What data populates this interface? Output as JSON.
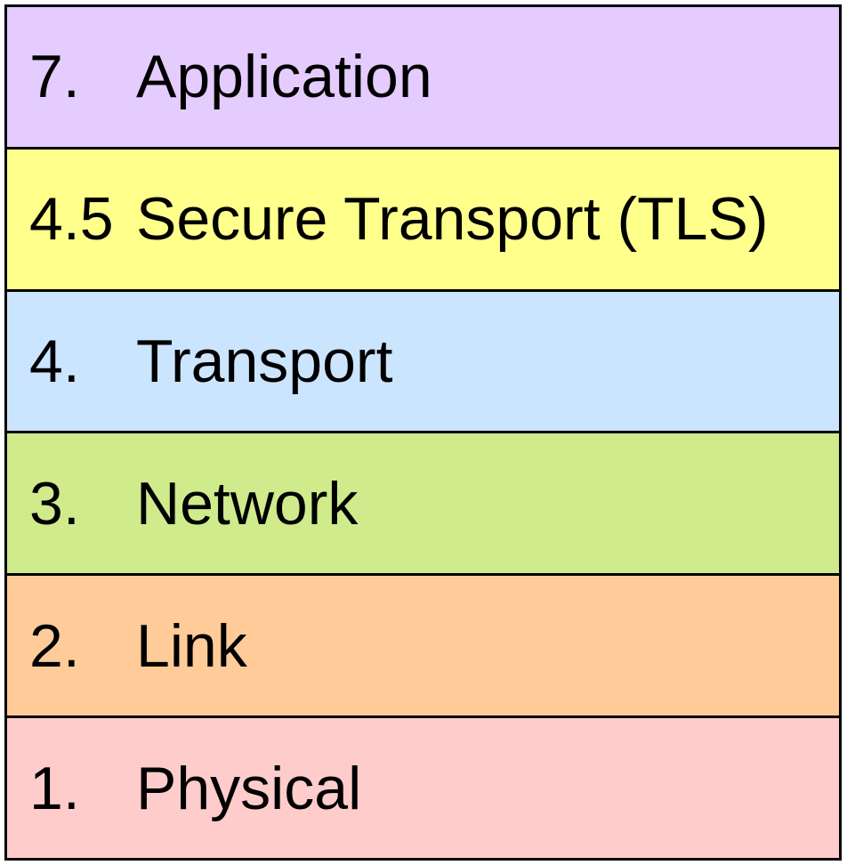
{
  "layers": [
    {
      "number": "7.",
      "name": "Application",
      "color": "#e5ccff"
    },
    {
      "number": "4.5",
      "name": "Secure Transport (TLS)",
      "color": "#ffff8c"
    },
    {
      "number": "4.",
      "name": "Transport",
      "color": "#cce5ff"
    },
    {
      "number": "3.",
      "name": "Network",
      "color": "#cfeb8c"
    },
    {
      "number": "2.",
      "name": "Link",
      "color": "#ffcc99"
    },
    {
      "number": "1.",
      "name": "Physical",
      "color": "#ffcccc"
    }
  ]
}
